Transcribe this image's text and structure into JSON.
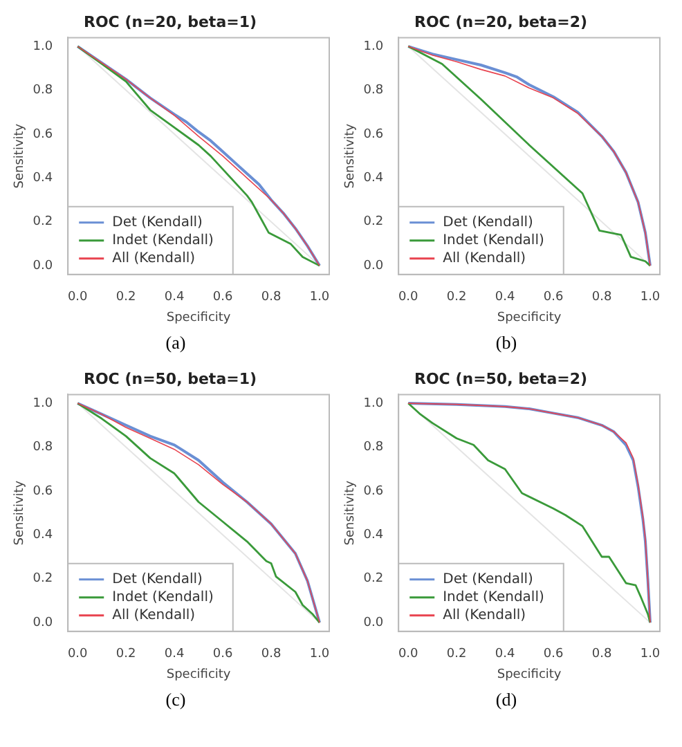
{
  "chart_data": [
    {
      "type": "line",
      "title": "ROC (n=20, beta=1)",
      "xlabel": "Specificity",
      "ylabel": "Sensitivity",
      "annotations": [
        "(a)"
      ],
      "xlim": [
        -0.04,
        1.04
      ],
      "ylim": [
        -0.04,
        1.04
      ],
      "xticks": [
        {
          "value": 0,
          "label": "0.0"
        },
        {
          "value": 0.2,
          "label": "0.2"
        },
        {
          "value": 0.4,
          "label": "0.4"
        },
        {
          "value": 0.6,
          "label": "0.6"
        },
        {
          "value": 0.8,
          "label": "0.8"
        },
        {
          "value": 1,
          "label": "1.0"
        }
      ],
      "yticks": [
        {
          "value": 0,
          "label": "0.0"
        },
        {
          "value": 0.2,
          "label": "0.2"
        },
        {
          "value": 0.4,
          "label": "0.4"
        },
        {
          "value": 0.6,
          "label": "0.6"
        },
        {
          "value": 0.8,
          "label": "0.8"
        },
        {
          "value": 1,
          "label": "1.0"
        }
      ],
      "grid": false,
      "legend": "bottom left",
      "marker": "none",
      "line_style": "solid",
      "series": [
        {
          "type": "line",
          "color": "#e4e4e4",
          "x": [
            0,
            1
          ],
          "values": [
            1,
            0
          ]
        },
        {
          "name": "Det (Kendall)",
          "color": "#6a8fd4",
          "x": [
            0,
            0.1,
            0.2,
            0.3,
            0.4,
            0.45,
            0.5,
            0.55,
            0.6,
            0.65,
            0.7,
            0.75,
            0.8,
            0.85,
            0.9,
            0.95,
            1
          ],
          "values": [
            1,
            0.925,
            0.85,
            0.765,
            0.69,
            0.655,
            0.61,
            0.57,
            0.52,
            0.47,
            0.42,
            0.37,
            0.3,
            0.24,
            0.17,
            0.09,
            0
          ]
        },
        {
          "name": "Indet (Kendall)",
          "color": "#3a9a3a",
          "x": [
            0,
            0.1,
            0.2,
            0.3,
            0.4,
            0.5,
            0.55,
            0.6,
            0.7,
            0.72,
            0.76,
            0.79,
            0.88,
            0.93,
            1
          ],
          "values": [
            1,
            0.92,
            0.84,
            0.71,
            0.63,
            0.55,
            0.5,
            0.44,
            0.32,
            0.29,
            0.21,
            0.15,
            0.1,
            0.04,
            0
          ]
        },
        {
          "name": "All (Kendall)",
          "color": "#e8434f",
          "x": [
            0,
            0.1,
            0.2,
            0.3,
            0.4,
            0.5,
            0.6,
            0.7,
            0.8,
            0.85,
            0.9,
            0.95,
            1
          ],
          "values": [
            1,
            0.925,
            0.85,
            0.765,
            0.685,
            0.59,
            0.5,
            0.4,
            0.3,
            0.24,
            0.17,
            0.09,
            0
          ]
        }
      ]
    },
    {
      "type": "line",
      "title": "ROC (n=20, beta=2)",
      "xlabel": "Specificity",
      "ylabel": "Sensitivity",
      "annotations": [
        "(b)"
      ],
      "xlim": [
        -0.04,
        1.04
      ],
      "ylim": [
        -0.04,
        1.04
      ],
      "xticks": [
        {
          "value": 0,
          "label": "0.0"
        },
        {
          "value": 0.2,
          "label": "0.2"
        },
        {
          "value": 0.4,
          "label": "0.4"
        },
        {
          "value": 0.6,
          "label": "0.6"
        },
        {
          "value": 0.8,
          "label": "0.8"
        },
        {
          "value": 1,
          "label": "1.0"
        }
      ],
      "yticks": [
        {
          "value": 0,
          "label": "0.0"
        },
        {
          "value": 0.2,
          "label": "0.2"
        },
        {
          "value": 0.4,
          "label": "0.4"
        },
        {
          "value": 0.6,
          "label": "0.6"
        },
        {
          "value": 0.8,
          "label": "0.8"
        },
        {
          "value": 1,
          "label": "1.0"
        }
      ],
      "grid": false,
      "legend": "bottom left",
      "marker": "none",
      "line_style": "solid",
      "series": [
        {
          "type": "line",
          "color": "#e4e4e4",
          "x": [
            0,
            1
          ],
          "values": [
            1,
            0
          ]
        },
        {
          "name": "Det (Kendall)",
          "color": "#6a8fd4",
          "x": [
            0,
            0.1,
            0.2,
            0.3,
            0.4,
            0.45,
            0.5,
            0.6,
            0.7,
            0.8,
            0.85,
            0.9,
            0.95,
            0.98,
            1
          ],
          "values": [
            1,
            0.965,
            0.94,
            0.915,
            0.88,
            0.86,
            0.825,
            0.77,
            0.7,
            0.59,
            0.52,
            0.425,
            0.29,
            0.15,
            0
          ]
        },
        {
          "name": "Indet (Kendall)",
          "color": "#3a9a3a",
          "x": [
            0,
            0.14,
            0.3,
            0.5,
            0.72,
            0.79,
            0.88,
            0.92,
            0.98,
            1
          ],
          "values": [
            1,
            0.92,
            0.76,
            0.55,
            0.33,
            0.16,
            0.14,
            0.04,
            0.02,
            0
          ]
        },
        {
          "name": "All (Kendall)",
          "color": "#e8434f",
          "x": [
            0,
            0.1,
            0.2,
            0.3,
            0.4,
            0.5,
            0.6,
            0.7,
            0.8,
            0.85,
            0.9,
            0.95,
            0.98,
            1
          ],
          "values": [
            1,
            0.96,
            0.93,
            0.895,
            0.865,
            0.81,
            0.765,
            0.695,
            0.59,
            0.52,
            0.425,
            0.29,
            0.15,
            0
          ]
        }
      ]
    },
    {
      "type": "line",
      "title": "ROC (n=50, beta=1)",
      "xlabel": "Specificity",
      "ylabel": "Sensitivity",
      "annotations": [
        "(c)"
      ],
      "xlim": [
        -0.04,
        1.04
      ],
      "ylim": [
        -0.04,
        1.04
      ],
      "xticks": [
        {
          "value": 0,
          "label": "0.0"
        },
        {
          "value": 0.2,
          "label": "0.2"
        },
        {
          "value": 0.4,
          "label": "0.4"
        },
        {
          "value": 0.6,
          "label": "0.6"
        },
        {
          "value": 0.8,
          "label": "0.8"
        },
        {
          "value": 1,
          "label": "1.0"
        }
      ],
      "yticks": [
        {
          "value": 0,
          "label": "0.0"
        },
        {
          "value": 0.2,
          "label": "0.2"
        },
        {
          "value": 0.4,
          "label": "0.4"
        },
        {
          "value": 0.6,
          "label": "0.6"
        },
        {
          "value": 0.8,
          "label": "0.8"
        },
        {
          "value": 1,
          "label": "1.0"
        }
      ],
      "grid": false,
      "legend": "bottom left",
      "marker": "none",
      "line_style": "solid",
      "series": [
        {
          "type": "line",
          "color": "#e4e4e4",
          "x": [
            0,
            1
          ],
          "values": [
            1,
            0
          ]
        },
        {
          "name": "Det (Kendall)",
          "color": "#6a8fd4",
          "x": [
            0,
            0.1,
            0.2,
            0.3,
            0.4,
            0.5,
            0.6,
            0.7,
            0.8,
            0.9,
            0.95,
            1
          ],
          "values": [
            1,
            0.95,
            0.9,
            0.85,
            0.81,
            0.74,
            0.64,
            0.55,
            0.45,
            0.315,
            0.19,
            0
          ]
        },
        {
          "name": "Indet (Kendall)",
          "color": "#3a9a3a",
          "x": [
            0,
            0.1,
            0.2,
            0.3,
            0.4,
            0.5,
            0.6,
            0.7,
            0.78,
            0.8,
            0.82,
            0.9,
            0.93,
            0.97,
            1
          ],
          "values": [
            1,
            0.93,
            0.85,
            0.75,
            0.68,
            0.55,
            0.46,
            0.37,
            0.28,
            0.27,
            0.21,
            0.14,
            0.08,
            0.04,
            0
          ]
        },
        {
          "name": "All (Kendall)",
          "color": "#e8434f",
          "x": [
            0,
            0.1,
            0.2,
            0.3,
            0.4,
            0.5,
            0.6,
            0.7,
            0.8,
            0.9,
            0.95,
            1
          ],
          "values": [
            1,
            0.95,
            0.89,
            0.84,
            0.79,
            0.72,
            0.63,
            0.55,
            0.45,
            0.315,
            0.19,
            0
          ]
        }
      ]
    },
    {
      "type": "line",
      "title": "ROC (n=50, beta=2)",
      "xlabel": "Specificity",
      "ylabel": "Sensitivity",
      "annotations": [
        "(d)"
      ],
      "xlim": [
        -0.04,
        1.04
      ],
      "ylim": [
        -0.04,
        1.04
      ],
      "xticks": [
        {
          "value": 0,
          "label": "0.0"
        },
        {
          "value": 0.2,
          "label": "0.2"
        },
        {
          "value": 0.4,
          "label": "0.4"
        },
        {
          "value": 0.6,
          "label": "0.6"
        },
        {
          "value": 0.8,
          "label": "0.8"
        },
        {
          "value": 1,
          "label": "1.0"
        }
      ],
      "yticks": [
        {
          "value": 0,
          "label": "0.0"
        },
        {
          "value": 0.2,
          "label": "0.2"
        },
        {
          "value": 0.4,
          "label": "0.4"
        },
        {
          "value": 0.6,
          "label": "0.6"
        },
        {
          "value": 0.8,
          "label": "0.8"
        },
        {
          "value": 1,
          "label": "1.0"
        }
      ],
      "grid": false,
      "legend": "bottom left",
      "marker": "none",
      "line_style": "solid",
      "series": [
        {
          "type": "line",
          "color": "#e4e4e4",
          "x": [
            0,
            1
          ],
          "values": [
            1,
            0
          ]
        },
        {
          "name": "Det (Kendall)",
          "color": "#6a8fd4",
          "x": [
            0,
            0.2,
            0.4,
            0.5,
            0.6,
            0.7,
            0.8,
            0.85,
            0.9,
            0.93,
            0.95,
            0.97,
            0.98,
            0.99,
            1
          ],
          "values": [
            1,
            0.995,
            0.985,
            0.975,
            0.955,
            0.935,
            0.9,
            0.87,
            0.81,
            0.74,
            0.62,
            0.47,
            0.37,
            0.2,
            0
          ]
        },
        {
          "name": "Indet (Kendall)",
          "color": "#3a9a3a",
          "x": [
            0,
            0.05,
            0.1,
            0.2,
            0.27,
            0.33,
            0.4,
            0.47,
            0.6,
            0.65,
            0.72,
            0.8,
            0.83,
            0.9,
            0.94,
            0.96,
            0.99,
            1
          ],
          "values": [
            1,
            0.95,
            0.91,
            0.84,
            0.81,
            0.74,
            0.7,
            0.59,
            0.52,
            0.49,
            0.44,
            0.3,
            0.3,
            0.18,
            0.17,
            0.12,
            0.04,
            0
          ]
        },
        {
          "name": "All (Kendall)",
          "color": "#e8434f",
          "x": [
            0,
            0.2,
            0.4,
            0.5,
            0.6,
            0.7,
            0.8,
            0.85,
            0.9,
            0.93,
            0.95,
            0.97,
            0.98,
            0.99,
            1
          ],
          "values": [
            1,
            0.995,
            0.985,
            0.975,
            0.955,
            0.935,
            0.9,
            0.87,
            0.82,
            0.75,
            0.63,
            0.48,
            0.38,
            0.2,
            0
          ]
        }
      ]
    }
  ]
}
